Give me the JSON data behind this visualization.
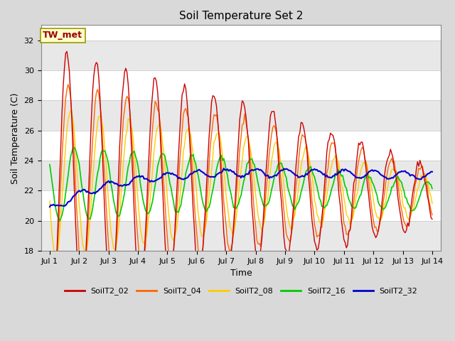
{
  "title": "Soil Temperature Set 2",
  "xlabel": "Time",
  "ylabel": "Soil Temperature (C)",
  "ylim": [
    18,
    33
  ],
  "yticks": [
    18,
    20,
    22,
    24,
    26,
    28,
    30,
    32
  ],
  "fig_bg_color": "#d9d9d9",
  "plot_bg_color": "#ffffff",
  "annotation_text": "TW_met",
  "annotation_bg": "#ffffcc",
  "annotation_border": "#999900",
  "series_colors": {
    "SoilT2_02": "#cc0000",
    "SoilT2_04": "#ff6600",
    "SoilT2_08": "#ffcc00",
    "SoilT2_16": "#00cc00",
    "SoilT2_32": "#0000cc"
  },
  "band_color": "#e8e8e8",
  "n_points": 313
}
